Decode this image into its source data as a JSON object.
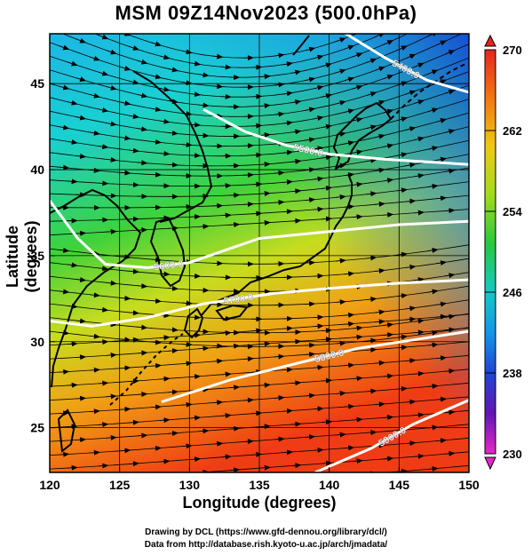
{
  "title": "MSM 09Z14Nov2023 (500.0hPa)",
  "map": {
    "xlabel": "Longitude (degrees)",
    "ylabel": "Latitude  (degrees)",
    "lon_range": [
      120,
      150
    ],
    "lat_range": [
      22.4,
      47.9
    ],
    "lon_ticks": [
      "120",
      "125",
      "130",
      "135",
      "140",
      "145",
      "150"
    ],
    "lat_ticks": [
      "25",
      "30",
      "35",
      "40",
      "45"
    ],
    "grid": true,
    "contours": [
      {
        "label": "5400.0",
        "points": [
          [
            141,
            48
          ],
          [
            144,
            46.5
          ],
          [
            147,
            45.2
          ],
          [
            150,
            44.5
          ]
        ]
      },
      {
        "label": "5500.0",
        "points": [
          [
            131,
            43.5
          ],
          [
            134,
            42.2
          ],
          [
            137,
            41.4
          ],
          [
            140,
            40.9
          ],
          [
            144,
            40.6
          ],
          [
            150,
            40.3
          ]
        ]
      },
      {
        "label": "5600.0",
        "points": [
          [
            120,
            38.2
          ],
          [
            122,
            36
          ],
          [
            124,
            34.5
          ],
          [
            127,
            34.3
          ],
          [
            130,
            34.6
          ],
          [
            135,
            36
          ],
          [
            140,
            36.4
          ],
          [
            145,
            36.8
          ],
          [
            150,
            37
          ]
        ]
      },
      {
        "label": "5700.0",
        "points": [
          [
            120,
            31.2
          ],
          [
            123,
            30.9
          ],
          [
            127,
            31.4
          ],
          [
            131,
            32.2
          ],
          [
            136,
            32.8
          ],
          [
            140,
            33.1
          ],
          [
            145,
            33.4
          ],
          [
            150,
            33.6
          ]
        ]
      },
      {
        "label": "5800.0",
        "points": [
          [
            128,
            26.5
          ],
          [
            133,
            27.8
          ],
          [
            138,
            28.8
          ],
          [
            142,
            29.6
          ],
          [
            146,
            30.1
          ],
          [
            150,
            30.6
          ]
        ]
      },
      {
        "label": "5900.0",
        "points": [
          [
            139,
            22.4
          ],
          [
            143,
            23.8
          ],
          [
            146,
            25.2
          ],
          [
            150,
            26.6
          ]
        ]
      }
    ]
  },
  "colorbar": {
    "min": 230,
    "max": 270,
    "ticks": [
      "270",
      "262",
      "254",
      "246",
      "238",
      "230"
    ]
  },
  "credits": [
    "Drawing by DCL (https://www.gfd-dennou.org/library/dcl/)",
    "Data from http://database.rish.kyoto-u.ac.jp/arch/jmadata/"
  ]
}
